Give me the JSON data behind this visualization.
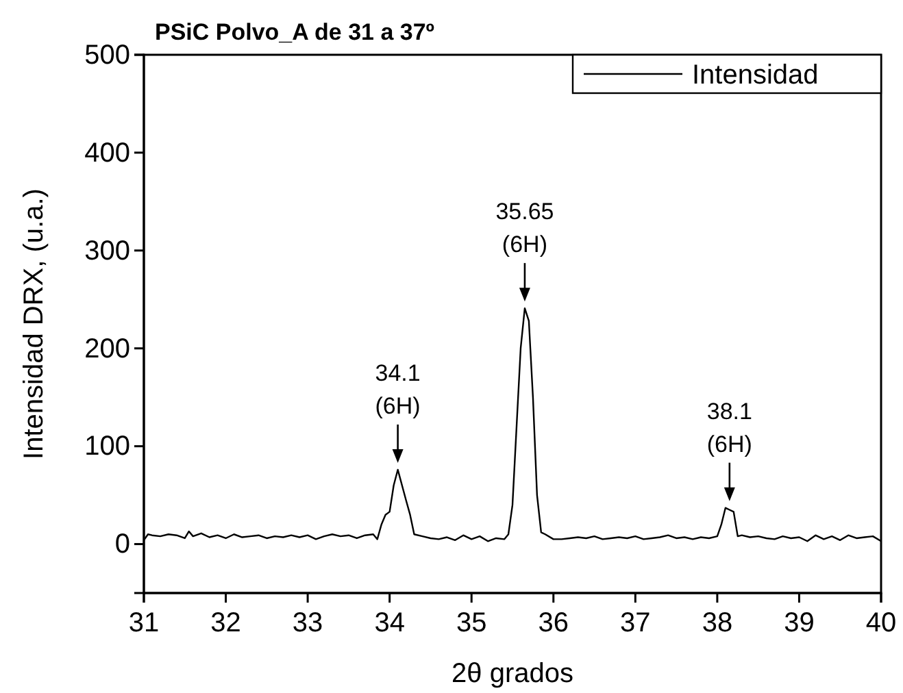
{
  "chart_data": {
    "type": "line",
    "title": "PSiC Polvo_A de 31 a 37º",
    "xlabel": "2θ grados",
    "ylabel": "Intensidad DRX, (u.a.)",
    "xlim": [
      31,
      40
    ],
    "ylim": [
      -50,
      500
    ],
    "xticks": [
      31,
      32,
      33,
      34,
      35,
      36,
      37,
      38,
      39,
      40
    ],
    "yticks": [
      0,
      100,
      200,
      300,
      400,
      500
    ],
    "legend": "top right",
    "grid": false,
    "series": [
      {
        "name": "Intensidad",
        "color": "#000000",
        "x": [
          31,
          31.05,
          31.1,
          31.2,
          31.3,
          31.4,
          31.5,
          31.55,
          31.6,
          31.7,
          31.8,
          31.9,
          32,
          32.1,
          32.2,
          32.3,
          32.4,
          32.5,
          32.6,
          32.7,
          32.8,
          32.9,
          33,
          33.1,
          33.2,
          33.3,
          33.4,
          33.5,
          33.6,
          33.7,
          33.8,
          33.85,
          33.9,
          33.95,
          34,
          34.05,
          34.1,
          34.2,
          34.25,
          34.3,
          34.4,
          34.5,
          34.6,
          34.7,
          34.8,
          34.9,
          35,
          35.1,
          35.2,
          35.3,
          35.4,
          35.45,
          35.5,
          35.55,
          35.6,
          35.65,
          35.7,
          35.75,
          35.8,
          35.85,
          35.9,
          36,
          36.1,
          36.2,
          36.3,
          36.4,
          36.5,
          36.6,
          36.7,
          36.8,
          36.9,
          37,
          37.1,
          37.2,
          37.3,
          37.4,
          37.5,
          37.6,
          37.7,
          37.8,
          37.9,
          38,
          38.05,
          38.1,
          38.15,
          38.2,
          38.25,
          38.3,
          38.4,
          38.5,
          38.6,
          38.7,
          38.8,
          38.9,
          39,
          39.1,
          39.2,
          39.3,
          39.4,
          39.5,
          39.6,
          39.7,
          39.8,
          39.9,
          40
        ],
        "values": [
          4,
          10,
          9,
          8,
          10,
          9,
          6,
          13,
          8,
          11,
          7,
          9,
          6,
          10,
          7,
          8,
          9,
          6,
          8,
          7,
          9,
          7,
          9,
          5,
          8,
          10,
          8,
          9,
          6,
          9,
          10,
          5,
          20,
          30,
          33,
          60,
          76,
          45,
          30,
          10,
          8,
          6,
          5,
          7,
          4,
          9,
          5,
          8,
          3,
          6,
          5,
          10,
          40,
          120,
          200,
          241,
          228,
          150,
          50,
          12,
          10,
          5,
          5,
          6,
          7,
          6,
          8,
          5,
          6,
          7,
          6,
          8,
          5,
          6,
          7,
          9,
          6,
          7,
          5,
          7,
          6,
          8,
          20,
          37,
          35,
          33,
          8,
          9,
          7,
          8,
          6,
          5,
          8,
          6,
          7,
          3,
          9,
          5,
          8,
          4,
          9,
          6,
          7,
          8,
          3
        ]
      }
    ],
    "annotations": [
      {
        "text": "34.1\n(6H)",
        "x": 34.1,
        "y": 76
      },
      {
        "text": "35.65\n(6H)",
        "x": 35.65,
        "y": 241
      },
      {
        "text": "38.1\n(6H)",
        "x": 38.15,
        "y": 37
      }
    ]
  }
}
